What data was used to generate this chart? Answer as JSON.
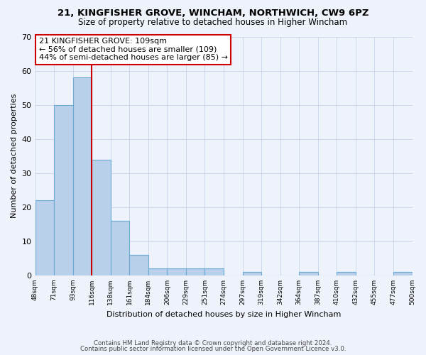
{
  "title1": "21, KINGFISHER GROVE, WINCHAM, NORTHWICH, CW9 6PZ",
  "title2": "Size of property relative to detached houses in Higher Wincham",
  "xlabel": "Distribution of detached houses by size in Higher Wincham",
  "ylabel": "Number of detached properties",
  "bar_values": [
    22,
    50,
    58,
    34,
    16,
    6,
    2,
    2,
    2,
    2,
    0,
    1,
    0,
    0,
    1,
    0,
    1,
    0,
    0,
    1
  ],
  "bin_labels": [
    "48sqm",
    "71sqm",
    "93sqm",
    "116sqm",
    "138sqm",
    "161sqm",
    "184sqm",
    "206sqm",
    "229sqm",
    "251sqm",
    "274sqm",
    "297sqm",
    "319sqm",
    "342sqm",
    "364sqm",
    "387sqm",
    "410sqm",
    "432sqm",
    "455sqm",
    "477sqm",
    "500sqm"
  ],
  "bar_color": "#b8d0ea",
  "bar_edge_color": "#6aaad4",
  "vline_x": 3,
  "vline_color": "#cc0000",
  "annotation_text": "21 KINGFISHER GROVE: 109sqm\n← 56% of detached houses are smaller (109)\n44% of semi-detached houses are larger (85) →",
  "annotation_box_color": "#ffffff",
  "annotation_box_edge": "#cc0000",
  "ylim": [
    0,
    70
  ],
  "yticks": [
    0,
    10,
    20,
    30,
    40,
    50,
    60,
    70
  ],
  "footer1": "Contains HM Land Registry data © Crown copyright and database right 2024.",
  "footer2": "Contains public sector information licensed under the Open Government Licence v3.0.",
  "bg_color": "#eef2fb",
  "plot_bg_color": "#eef2fb",
  "grid_color": "#c8d4e8"
}
